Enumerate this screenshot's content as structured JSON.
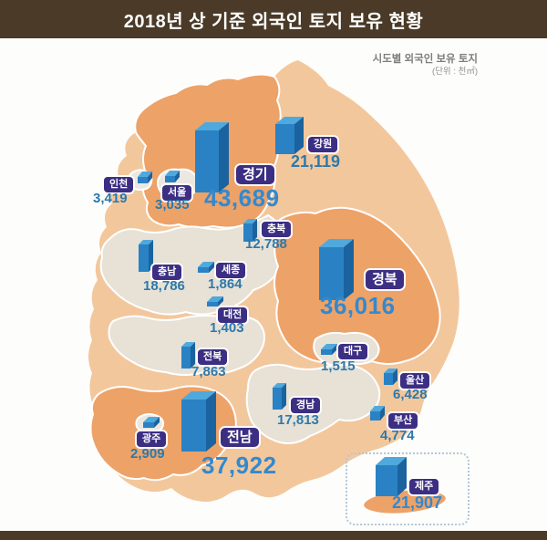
{
  "title": "2018년 상 기준 외국인 토지 보유 현황",
  "subtitle": {
    "line1": "시도별 외국인 보유 토지",
    "line2": "(단위 : 천㎡)"
  },
  "colors": {
    "title_bg": "#4a3a27",
    "badge_bg": "#3c2f83",
    "value_color": "#2d79ab",
    "value_big_color": "#3389cf",
    "bar_front": "#2a82c4",
    "bar_top": "#4fa9dc",
    "bar_side": "#1a639f",
    "map_orange": "#eda268",
    "map_peach": "#f3c79c",
    "map_beige": "#e7e1d6",
    "map_gray": "#ebe8e1"
  },
  "regions": {
    "incheon": {
      "name": "인천",
      "value": "3,419"
    },
    "seoul": {
      "name": "서울",
      "value": "3,035"
    },
    "gyeonggi": {
      "name": "경기",
      "value": "43,689"
    },
    "gangwon": {
      "name": "강원",
      "value": "21,119"
    },
    "chungbuk": {
      "name": "충북",
      "value": "12,788"
    },
    "sejong": {
      "name": "세종",
      "value": "1,864"
    },
    "chungnam": {
      "name": "충남",
      "value": "18,786"
    },
    "daejeon": {
      "name": "대전",
      "value": "1,403"
    },
    "gyeongbuk": {
      "name": "경북",
      "value": "36,016"
    },
    "jeonbuk": {
      "name": "전북",
      "value": "7,863"
    },
    "daegu": {
      "name": "대구",
      "value": "1,515"
    },
    "ulsan": {
      "name": "울산",
      "value": "6,428"
    },
    "gyeongnam": {
      "name": "경남",
      "value": "17,813"
    },
    "busan": {
      "name": "부산",
      "value": "4,774"
    },
    "gwangju": {
      "name": "광주",
      "value": "2,909"
    },
    "jeonnam": {
      "name": "전남",
      "value": "37,922"
    },
    "jeju": {
      "name": "제주",
      "value": "21,907"
    }
  },
  "chart_data": {
    "type": "bar",
    "title": "2018년 상 기준 외국인 토지 보유 현황",
    "subtitle": "시도별 외국인 보유 토지",
    "unit": "천㎡",
    "categories": [
      "경기",
      "전남",
      "경북",
      "제주",
      "강원",
      "충남",
      "경남",
      "충북",
      "전북",
      "울산",
      "부산",
      "인천",
      "서울",
      "광주",
      "세종",
      "대구",
      "대전"
    ],
    "values": [
      43689,
      37922,
      36016,
      21907,
      21119,
      18786,
      17813,
      12788,
      7863,
      6428,
      4774,
      3419,
      3035,
      2909,
      1864,
      1515,
      1403
    ],
    "layout": "choropleth-style map of South Korea with 3D column markers per province"
  }
}
